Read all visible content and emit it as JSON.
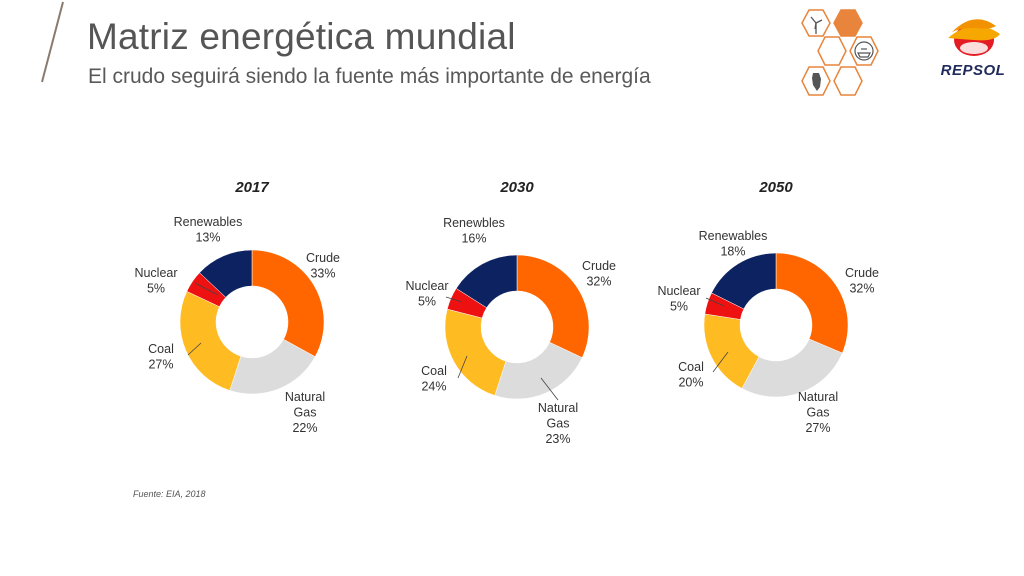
{
  "header": {
    "title": "Matriz energética mundial",
    "subtitle": "El crudo seguirá siendo la fuente más importante de energía"
  },
  "brand": {
    "name": "REPSOL"
  },
  "decor_icons": [
    "wind-turbine-icon",
    "tanker-ship-icon",
    "map-icon"
  ],
  "colors": {
    "crude": "#FF6600",
    "gas": "#DCDCDC",
    "coal": "#FFBB22",
    "nuclear": "#EE1111",
    "renewables": "#0D2361",
    "hex": "#E8843C",
    "text": "#333333"
  },
  "chart_data": [
    {
      "type": "pie",
      "donut": true,
      "title": "2017",
      "categories": [
        "Crude",
        "Natural Gas",
        "Coal",
        "Nuclear",
        "Renewables"
      ],
      "labels": [
        "Crude",
        "Natural\nGas",
        "Coal",
        "Nuclear",
        "Renewables"
      ],
      "value_labels": [
        "33%",
        "22%",
        "27%",
        "5%",
        "13%"
      ],
      "values": [
        33,
        22,
        27,
        5,
        13
      ]
    },
    {
      "type": "pie",
      "donut": true,
      "title": "2030",
      "categories": [
        "Crude",
        "Natural Gas",
        "Coal",
        "Nuclear",
        "Renewbles"
      ],
      "labels": [
        "Crude",
        "Natural\nGas",
        "Coal",
        "Nuclear",
        "Renewbles"
      ],
      "value_labels": [
        "32%",
        "23%",
        "24%",
        "5%",
        "16%"
      ],
      "values": [
        32,
        23,
        24,
        5,
        16
      ]
    },
    {
      "type": "pie",
      "donut": true,
      "title": "2050",
      "categories": [
        "Crude",
        "Natural Gas",
        "Coal",
        "Nuclear",
        "Renewables"
      ],
      "labels": [
        "Crude",
        "Natural\nGas",
        "Coal",
        "Nuclear",
        "Renewables"
      ],
      "value_labels": [
        "32%",
        "27%",
        "20%",
        "5%",
        "18%"
      ],
      "values": [
        32,
        27,
        20,
        5,
        18
      ]
    }
  ],
  "footer": {
    "source": "Fuente: EIA, 2018"
  }
}
